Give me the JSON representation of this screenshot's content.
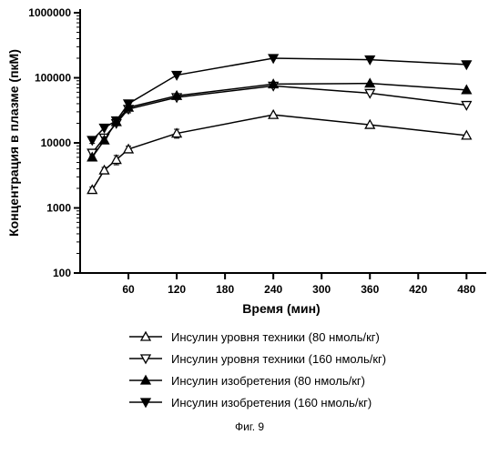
{
  "chart": {
    "type": "line-scatter",
    "xlabel": "Время (мин)",
    "ylabel": "Концентрация в плазме (пкМ)",
    "label_fontsize": 14,
    "label_fontweight": "bold",
    "tick_fontsize": 12,
    "tick_fontweight": "bold",
    "background_color": "#ffffff",
    "axis_color": "#000000",
    "axis_width": 2,
    "marker_size": 5,
    "line_width": 1.5,
    "errorbar_width": 1,
    "xlim": [
      0,
      500
    ],
    "xticks": [
      60,
      120,
      180,
      240,
      300,
      360,
      420,
      480
    ],
    "yscale": "log",
    "ylim": [
      100,
      1000000
    ],
    "yticks": [
      100,
      1000,
      10000,
      100000,
      1000000
    ],
    "series": [
      {
        "id": "tech80",
        "label": "Инсулин уровня техники (80 нмоль/кг)",
        "marker": "triangle-up",
        "fill": "#ffffff",
        "stroke": "#000000",
        "x": [
          15,
          30,
          45,
          60,
          120,
          240,
          360,
          480
        ],
        "y": [
          1900,
          3800,
          5500,
          8000,
          14000,
          27000,
          19000,
          13000
        ],
        "err": [
          200,
          400,
          900,
          900,
          2200,
          0,
          0,
          0
        ]
      },
      {
        "id": "tech160",
        "label": "Инсулин уровня техники (160 нмоль/кг)",
        "marker": "triangle-down",
        "fill": "#ffffff",
        "stroke": "#000000",
        "x": [
          15,
          30,
          45,
          60,
          120,
          240,
          360,
          480
        ],
        "y": [
          7000,
          12000,
          20000,
          33000,
          50000,
          75000,
          58000,
          38000
        ],
        "err": [
          700,
          1500,
          0,
          4000,
          0,
          0,
          0,
          0
        ]
      },
      {
        "id": "inv80",
        "label": "Инсулин изобретения (80 нмоль/кг)",
        "marker": "triangle-up",
        "fill": "#000000",
        "stroke": "#000000",
        "x": [
          15,
          30,
          45,
          60,
          120,
          240,
          360,
          480
        ],
        "y": [
          6000,
          11000,
          21000,
          35000,
          53000,
          80000,
          82000,
          65000
        ],
        "err": [
          600,
          1200,
          0,
          0,
          0,
          0,
          0,
          0
        ]
      },
      {
        "id": "inv160",
        "label": "Инсулин изобретения (160 нмоль/кг)",
        "marker": "triangle-down",
        "fill": "#000000",
        "stroke": "#000000",
        "x": [
          15,
          30,
          45,
          60,
          120,
          240,
          360,
          480
        ],
        "y": [
          11000,
          17000,
          22000,
          40000,
          110000,
          200000,
          190000,
          160000
        ],
        "err": [
          1200,
          0,
          0,
          0,
          0,
          0,
          0,
          0
        ]
      }
    ]
  },
  "legend": {
    "items": [
      {
        "label": "Инсулин уровня техники (80 нмоль/кг)",
        "series": "tech80"
      },
      {
        "label": "Инсулин уровня техники (160 нмоль/кг)",
        "series": "tech160"
      },
      {
        "label": "Инсулин изобретения (80 нмоль/кг)",
        "series": "inv80"
      },
      {
        "label": "Инсулин изобретения (160 нмоль/кг)",
        "series": "inv160"
      }
    ]
  },
  "caption": "Фиг. 9"
}
